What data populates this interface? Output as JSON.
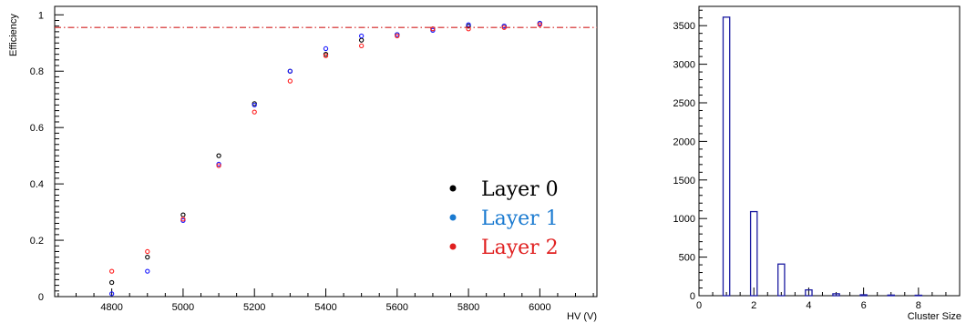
{
  "chart_data": [
    {
      "type": "scatter",
      "title": "",
      "xlabel": "HV (V)",
      "ylabel": "Efficiency",
      "xlim": [
        4640,
        6160
      ],
      "ylim": [
        0,
        1.03
      ],
      "x_ticks": [
        4800,
        5000,
        5200,
        5400,
        5600,
        5800,
        6000
      ],
      "y_ticks": [
        0,
        0.2,
        0.4,
        0.6,
        0.8,
        1
      ],
      "x_tick_labels": [
        "4800",
        "5000",
        "5200",
        "5400",
        "5600",
        "5800",
        "6000"
      ],
      "y_tick_labels": [
        "0",
        "0.2",
        "0.4",
        "0.6",
        "0.8",
        "1"
      ],
      "reference_line": {
        "y": 0.955,
        "style": "dash-dot",
        "color": "#d42020"
      },
      "legend_position": "lower-right",
      "x": [
        4800,
        4900,
        5000,
        5100,
        5200,
        5300,
        5400,
        5500,
        5600,
        5700,
        5800,
        5900,
        6000
      ],
      "series": [
        {
          "name": "Layer 0",
          "color": "#000000",
          "values": [
            0.05,
            0.14,
            0.29,
            0.5,
            0.685,
            0.8,
            0.86,
            0.91,
            0.93,
            0.95,
            0.96,
            0.96,
            0.97
          ]
        },
        {
          "name": "Layer 1",
          "color": "#1a1aff",
          "values": [
            0.01,
            0.09,
            0.27,
            0.47,
            0.68,
            0.8,
            0.88,
            0.925,
            0.93,
            0.945,
            0.965,
            0.96,
            0.97
          ]
        },
        {
          "name": "Layer 2",
          "color": "#ff2020",
          "values": [
            0.09,
            0.16,
            0.275,
            0.465,
            0.655,
            0.765,
            0.855,
            0.89,
            0.925,
            0.95,
            0.95,
            0.955,
            0.965
          ]
        }
      ],
      "legend": [
        {
          "label": "Layer 0",
          "color": "#000000"
        },
        {
          "label": "Layer 1",
          "color": "#1a7ad0"
        },
        {
          "label": "Layer 2",
          "color": "#e02020"
        }
      ]
    },
    {
      "type": "bar",
      "title": "",
      "xlabel": "Cluster Size",
      "ylabel": "",
      "xlim": [
        0,
        9.5
      ],
      "ylim": [
        0,
        3750
      ],
      "x_ticks": [
        0,
        2,
        4,
        6,
        8
      ],
      "y_ticks": [
        0,
        500,
        1000,
        1500,
        2000,
        2500,
        3000,
        3500
      ],
      "x_tick_labels": [
        "0",
        "2",
        "4",
        "6",
        "8"
      ],
      "y_tick_labels": [
        "0",
        "500",
        "1000",
        "1500",
        "2000",
        "2500",
        "3000",
        "3500"
      ],
      "categories": [
        1,
        2,
        3,
        4,
        5,
        6,
        7,
        8
      ],
      "values": [
        3610,
        1090,
        410,
        75,
        25,
        12,
        8,
        6
      ],
      "color": "#1a1aa0"
    }
  ]
}
